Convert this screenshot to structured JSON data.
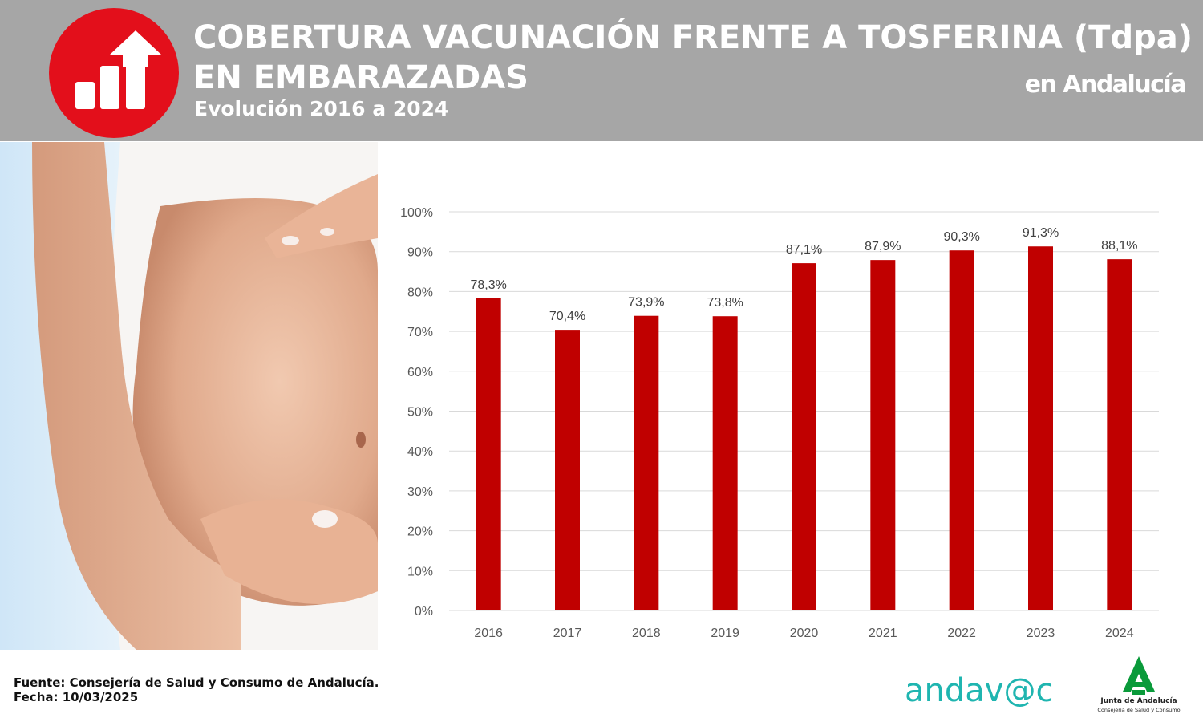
{
  "header": {
    "title_line1": "COBERTURA VACUNACIÓN FRENTE A TOSFERINA (Tdpa)",
    "title_line2": "EN EMBARAZADAS",
    "subtitle": "Evolución 2016 a 2024",
    "region": "en Andalucía",
    "logo_icon": "bar-chart-up-arrow-icon",
    "logo_color": "#e30f1b",
    "band_color": "#a6a6a6"
  },
  "chart_data": {
    "type": "bar",
    "categories": [
      "2016",
      "2017",
      "2018",
      "2019",
      "2020",
      "2021",
      "2022",
      "2023",
      "2024"
    ],
    "values": [
      78.3,
      70.4,
      73.9,
      73.8,
      87.1,
      87.9,
      90.3,
      91.3,
      88.1
    ],
    "data_labels": [
      "78,3%",
      "70,4%",
      "73,9%",
      "73,8%",
      "87,1%",
      "87,9%",
      "90,3%",
      "91,3%",
      "88,1%"
    ],
    "y_ticks": [
      0,
      10,
      20,
      30,
      40,
      50,
      60,
      70,
      80,
      90,
      100
    ],
    "y_tick_labels": [
      "0%",
      "10%",
      "20%",
      "30%",
      "40%",
      "50%",
      "60%",
      "70%",
      "80%",
      "90%",
      "100%"
    ],
    "ylim": [
      0,
      100
    ],
    "grid": true,
    "bar_color": "#c00000",
    "title": "",
    "xlabel": "",
    "ylabel": ""
  },
  "footer": {
    "source": "Fuente: Consejería de Salud y Consumo de Andalucía.",
    "date": "Fecha: 10/03/2025",
    "andavac_logo_text": "andav@c",
    "andavac_color": "#1fb5b0",
    "junta_title": "Junta de Andalucía",
    "junta_subtitle": "Consejería de Salud y Consumo",
    "junta_color": "#0a9a3a"
  }
}
